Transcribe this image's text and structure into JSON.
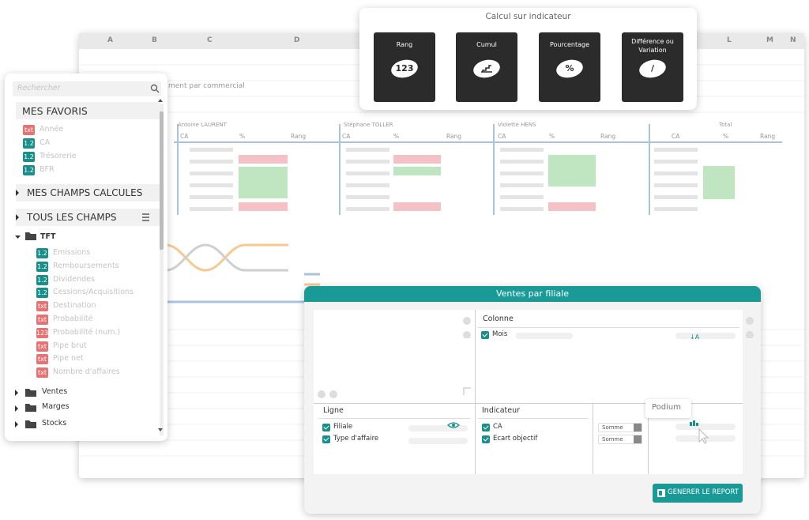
{
  "spreadsheet": {
    "columns": [
      "A",
      "B",
      "C",
      "D",
      "L",
      "M",
      "N"
    ],
    "subtitle": "ment par commercial",
    "groups": [
      "Antoine LAURENT",
      "Stéphane TOLLER",
      "Violette HENS",
      "Total"
    ],
    "headers": [
      "CA",
      "%",
      "Rang",
      "CA",
      "%",
      "Rang",
      "CA",
      "%",
      "Rang",
      "CA",
      "%",
      "Rang"
    ]
  },
  "calc_popup": {
    "title": "Calcul sur indicateur",
    "cards": [
      {
        "label": "Rang",
        "symbol": "123"
      },
      {
        "label": "Cumul"
      },
      {
        "label": "Pourcentage",
        "symbol": "%"
      },
      {
        "label": "Différence ou Variation",
        "symbol": "/"
      }
    ]
  },
  "field_panel": {
    "search_placeholder": "Rechercher",
    "favorites": {
      "title": "MES FAVORIS",
      "items": [
        {
          "badge": "txt",
          "color": "#e57373",
          "label": "Année"
        },
        {
          "badge": "1.2",
          "color": "#1a8f8a",
          "label": "CA"
        },
        {
          "badge": "1.2",
          "color": "#1a8f8a",
          "label": "Trésorerie"
        },
        {
          "badge": "1.2",
          "color": "#1a8f8a",
          "label": "BFR"
        }
      ]
    },
    "calculated": {
      "title": "MES CHAMPS CALCULES"
    },
    "all_fields": {
      "title": "TOUS LES CHAMPS",
      "folder": "TFT",
      "items": [
        {
          "badge": "1.2",
          "color": "#1a8f8a",
          "label": "Emissions"
        },
        {
          "badge": "1.2",
          "color": "#1a8f8a",
          "label": "Remboursements"
        },
        {
          "badge": "1.2",
          "color": "#1a8f8a",
          "label": "Dividendes"
        },
        {
          "badge": "1.2",
          "color": "#1a8f8a",
          "label": "Cessions/Acquisitions"
        },
        {
          "badge": "txt",
          "color": "#e57373",
          "label": "Destination"
        },
        {
          "badge": "txt",
          "color": "#e57373",
          "label": "Probabilité"
        },
        {
          "badge": "123",
          "color": "#e57373",
          "label": "Probabilité (num.)"
        },
        {
          "badge": "txt",
          "color": "#e57373",
          "label": "Pipe brut"
        },
        {
          "badge": "txt",
          "color": "#e57373",
          "label": "Pipe net"
        },
        {
          "badge": "txt",
          "color": "#e57373",
          "label": "Nombre d'affaires"
        }
      ],
      "folders": [
        "Ventes",
        "Marges",
        "Stocks"
      ]
    }
  },
  "report_panel": {
    "title": "Ventes par filiale",
    "column": {
      "title": "Colonne",
      "fields": [
        "Mois"
      ]
    },
    "row": {
      "title": "Ligne",
      "fields": [
        "Filiale",
        "Type d'affaire"
      ]
    },
    "indicator": {
      "title": "Indicateur",
      "fields": [
        "CA",
        "Ecart objectif"
      ],
      "aggregations": [
        "Somme",
        "Somme"
      ]
    },
    "tooltip": "Podium",
    "button": "GENERER LE REPORT"
  }
}
